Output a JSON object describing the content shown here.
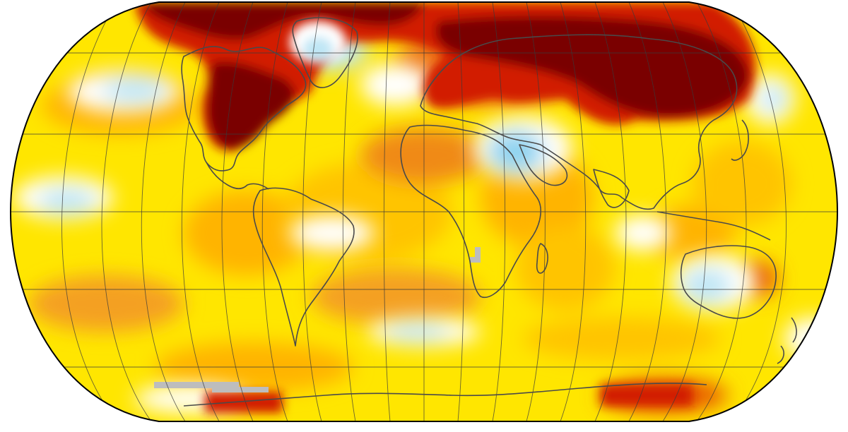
{
  "map": {
    "projection": "Robinson",
    "graticule": {
      "meridian_step_deg": 20,
      "parallel_step_deg": 15
    },
    "colors": {
      "much_warmer": "#7a0000",
      "warmer_strong": "#d21b00",
      "warmer": "#f07a12",
      "warm": "#ffb400",
      "slightly_warm": "#ffe600",
      "near_normal": "#ffffff",
      "cooler": "#bfe6f5",
      "cool": "#8fd3f0",
      "missing_data": "#bdbdbd",
      "coastline": "#4a4a4a",
      "outline": "#000000"
    }
  }
}
